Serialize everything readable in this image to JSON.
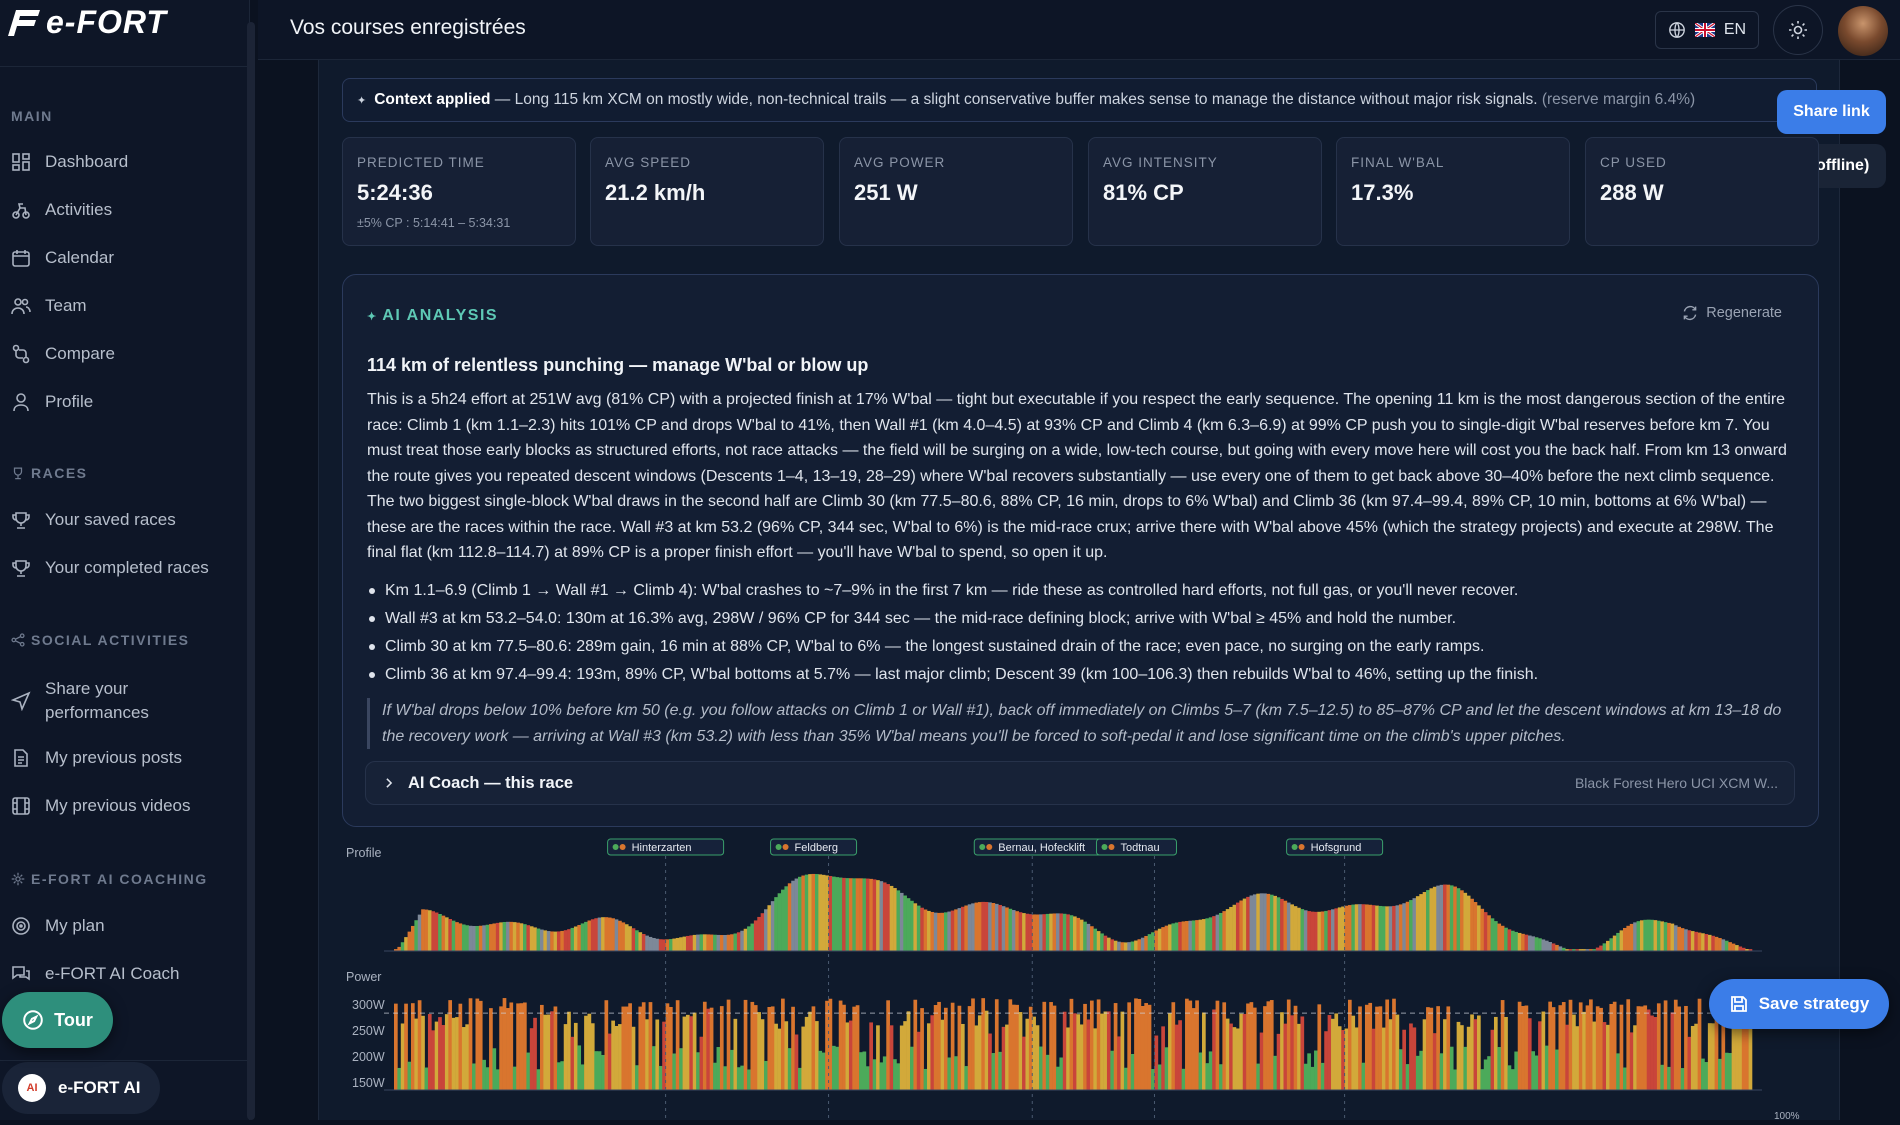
{
  "app": {
    "logo_text": "e-FORT"
  },
  "sidebar": {
    "sections": {
      "main": "MAIN",
      "races": "RACES",
      "social": "SOCIAL ACTIVITIES",
      "coaching": "E-FORT AI COACHING"
    },
    "items": [
      {
        "label": "Dashboard",
        "icon": "dashboard-icon"
      },
      {
        "label": "Activities",
        "icon": "activities-icon"
      },
      {
        "label": "Calendar",
        "icon": "calendar-icon"
      },
      {
        "label": "Team",
        "icon": "team-icon"
      },
      {
        "label": "Compare",
        "icon": "compare-icon"
      },
      {
        "label": "Profile",
        "icon": "profile-icon"
      },
      {
        "label": "Your saved races",
        "icon": "trophy-icon"
      },
      {
        "label": "Your completed races",
        "icon": "trophy-icon"
      },
      {
        "label": "Share your performances",
        "icon": "send-icon"
      },
      {
        "label": "My previous posts",
        "icon": "document-icon"
      },
      {
        "label": "My previous videos",
        "icon": "film-icon"
      },
      {
        "label": "My plan",
        "icon": "target-icon"
      },
      {
        "label": "e-FORT AI Coach",
        "icon": "chat-icon"
      }
    ],
    "tour_label": "Tour",
    "ai_label": "e-FORT AI"
  },
  "header": {
    "title": "Vos courses enregistrées",
    "language": "EN"
  },
  "context": {
    "label": "Context applied",
    "text": "— Long 115 km XCM on mostly wide, non-technical trails — a slight conservative buffer makes sense to manage the distance without major risk signals.",
    "margin": "(reserve margin 6.4%)"
  },
  "actions": {
    "share": "Share link",
    "download": "Download (offline)",
    "save": "Save strategy"
  },
  "stats": [
    {
      "label": "PREDICTED TIME",
      "value": "5:24:36",
      "sub": "±5% CP : 5:14:41 – 5:34:31"
    },
    {
      "label": "AVG SPEED",
      "value": "21.2 km/h",
      "sub": ""
    },
    {
      "label": "AVG POWER",
      "value": "251 W",
      "sub": ""
    },
    {
      "label": "AVG INTENSITY",
      "value": "81% CP",
      "sub": ""
    },
    {
      "label": "FINAL W'BAL",
      "value": "17.3%",
      "sub": ""
    },
    {
      "label": "CP USED",
      "value": "288 W",
      "sub": ""
    }
  ],
  "analysis": {
    "header": "AI ANALYSIS",
    "regenerate": "Regenerate",
    "title": "114 km of relentless punching — manage W'bal or blow up",
    "paragraph": "This is a 5h24 effort at 251W avg (81% CP) with a projected finish at 17% W'bal — tight but executable if you respect the early sequence. The opening 11 km is the most dangerous section of the entire race: Climb 1 (km 1.1–2.3) hits 101% CP and drops W'bal to 41%, then Wall #1 (km 4.0–4.5) at 93% CP and Climb 4 (km 6.3–6.9) at 99% CP push you to single-digit W'bal reserves before km 7. You must treat those early blocks as structured efforts, not race attacks — the field will be surging on a wide, low-tech course, but going with every move here will cost you the back half. From km 13 onward the route gives you repeated descent windows (Descents 1–4, 13–19, 28–29) where W'bal recovers substantially — use every one of them to get back above 30–40% before the next climb sequence. The two biggest single-block W'bal draws in the second half are Climb 30 (km 77.5–80.6, 88% CP, 16 min, drops to 6% W'bal) and Climb 36 (km 97.4–99.4, 89% CP, 10 min, bottoms at 6% W'bal) — these are the races within the race. Wall #3 at km 53.2 (96% CP, 344 sec, W'bal to 6%) is the mid-race crux; arrive there with W'bal above 45% (which the strategy projects) and execute at 298W. The final flat (km 112.8–114.7) at 89% CP is a proper finish effort — you'll have W'bal to spend, so open it up.",
    "bullets": [
      "Km 1.1–6.9 (Climb 1 → Wall #1 → Climb 4): W'bal crashes to ~7–9% in the first 7 km — ride these as controlled hard efforts, not full gas, or you'll never recover.",
      "Wall #3 at km 53.2–54.0: 130m at 16.3% avg, 298W / 96% CP for 344 sec — the mid-race defining block; arrive with W'bal ≥ 45% and hold the number.",
      "Climb 30 at km 77.5–80.6: 289m gain, 16 min at 88% CP, W'bal to 6% — the longest sustained drain of the race; even pace, no surging on the early ramps.",
      "Climb 36 at km 97.4–99.4: 193m, 89% CP, W'bal bottoms at 5.7% — last major climb; Descent 39 (km 100–106.3) then rebuilds W'bal to 46%, setting up the finish."
    ],
    "quote": "If W'bal drops below 10% before km 50 (e.g. you follow attacks on Climb 1 or Wall #1), back off immediately on Climbs 5–7 (km 7.5–12.5) to 85–87% CP and let the descent windows at km 13–18 do the recovery work — arriving at Wall #3 (km 53.2) with less than 35% W'bal means you'll be forced to soft-pedal it and lose significant time on the climb's upper pitches.",
    "coach_label": "AI Coach — this race",
    "coach_race": "Black Forest Hero UCI XCM W..."
  },
  "chart_data": {
    "type": "area",
    "profile_label": "Profile",
    "power_label": "Power",
    "power_ticks": [
      "300W",
      "250W",
      "200W",
      "150W"
    ],
    "x_end_label": "100%",
    "waypoints": [
      "Hinterzarten",
      "Feldberg",
      "Bernau, Hofecklift",
      "Todtnau",
      "Hofsgrund"
    ],
    "ylim_power": [
      100,
      330
    ],
    "cp_line": 288,
    "colors": {
      "green": "#4caa5a",
      "yellow": "#d2a93a",
      "orange": "#d9752e",
      "red": "#c9453a",
      "gray": "#7d8898"
    }
  }
}
